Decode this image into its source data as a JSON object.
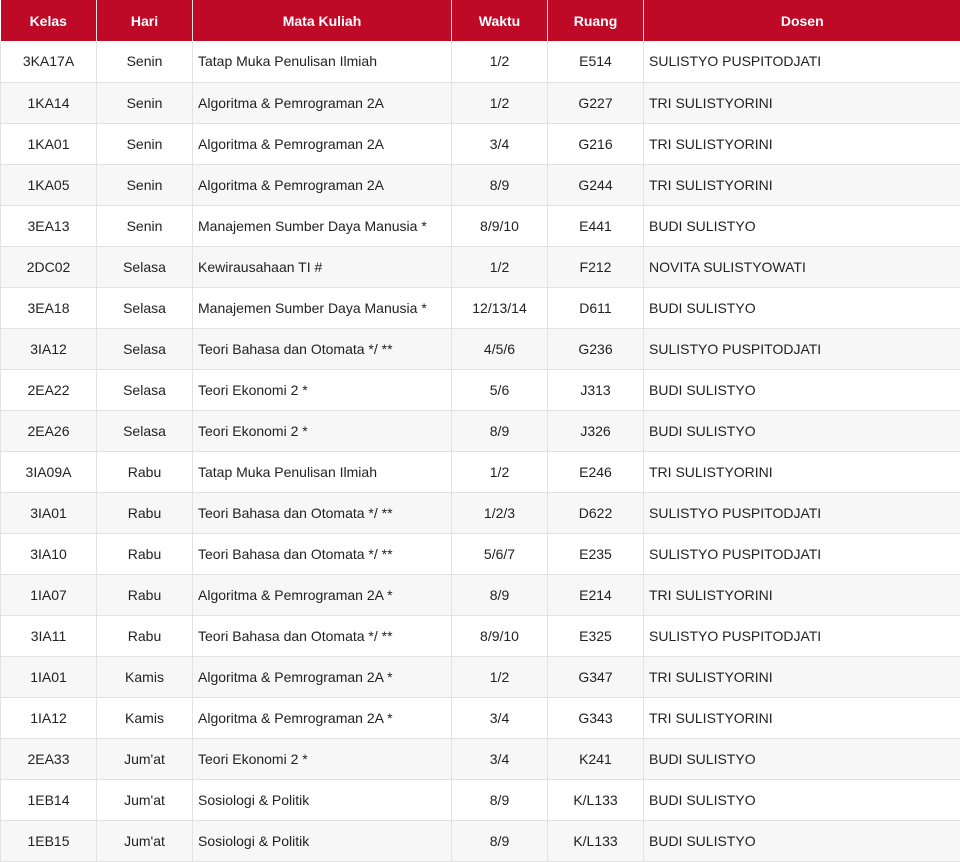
{
  "colors": {
    "header_bg": "#be0a27",
    "header_text": "#ffffff",
    "row_alt": "#f7f7f7",
    "border": "#e2e2e2"
  },
  "table": {
    "headers": {
      "kelas": "Kelas",
      "hari": "Hari",
      "mata_kuliah": "Mata Kuliah",
      "waktu": "Waktu",
      "ruang": "Ruang",
      "dosen": "Dosen"
    },
    "rows": [
      {
        "kelas": "3KA17A",
        "hari": "Senin",
        "mata_kuliah": "Tatap Muka Penulisan Ilmiah",
        "waktu": "1/2",
        "ruang": "E514",
        "dosen": "SULISTYO PUSPITODJATI"
      },
      {
        "kelas": "1KA14",
        "hari": "Senin",
        "mata_kuliah": "Algoritma & Pemrograman 2A",
        "waktu": "1/2",
        "ruang": "G227",
        "dosen": "TRI SULISTYORINI"
      },
      {
        "kelas": "1KA01",
        "hari": "Senin",
        "mata_kuliah": "Algoritma & Pemrograman 2A",
        "waktu": "3/4",
        "ruang": "G216",
        "dosen": "TRI SULISTYORINI"
      },
      {
        "kelas": "1KA05",
        "hari": "Senin",
        "mata_kuliah": "Algoritma & Pemrograman 2A",
        "waktu": "8/9",
        "ruang": "G244",
        "dosen": "TRI SULISTYORINI"
      },
      {
        "kelas": "3EA13",
        "hari": "Senin",
        "mata_kuliah": "Manajemen Sumber Daya Manusia *",
        "waktu": "8/9/10",
        "ruang": "E441",
        "dosen": "BUDI SULISTYO"
      },
      {
        "kelas": "2DC02",
        "hari": "Selasa",
        "mata_kuliah": "Kewirausahaan TI #",
        "waktu": "1/2",
        "ruang": "F212",
        "dosen": "NOVITA SULISTYOWATI"
      },
      {
        "kelas": "3EA18",
        "hari": "Selasa",
        "mata_kuliah": "Manajemen Sumber Daya Manusia *",
        "waktu": "12/13/14",
        "ruang": "D611",
        "dosen": "BUDI SULISTYO"
      },
      {
        "kelas": "3IA12",
        "hari": "Selasa",
        "mata_kuliah": "Teori Bahasa dan Otomata */ **",
        "waktu": "4/5/6",
        "ruang": "G236",
        "dosen": "SULISTYO PUSPITODJATI"
      },
      {
        "kelas": "2EA22",
        "hari": "Selasa",
        "mata_kuliah": "Teori Ekonomi 2 *",
        "waktu": "5/6",
        "ruang": "J313",
        "dosen": "BUDI SULISTYO"
      },
      {
        "kelas": "2EA26",
        "hari": "Selasa",
        "mata_kuliah": "Teori Ekonomi 2 *",
        "waktu": "8/9",
        "ruang": "J326",
        "dosen": "BUDI SULISTYO"
      },
      {
        "kelas": "3IA09A",
        "hari": "Rabu",
        "mata_kuliah": "Tatap Muka Penulisan Ilmiah",
        "waktu": "1/2",
        "ruang": "E246",
        "dosen": "TRI SULISTYORINI"
      },
      {
        "kelas": "3IA01",
        "hari": "Rabu",
        "mata_kuliah": "Teori Bahasa dan Otomata */ **",
        "waktu": "1/2/3",
        "ruang": "D622",
        "dosen": "SULISTYO PUSPITODJATI"
      },
      {
        "kelas": "3IA10",
        "hari": "Rabu",
        "mata_kuliah": "Teori Bahasa dan Otomata */ **",
        "waktu": "5/6/7",
        "ruang": "E235",
        "dosen": "SULISTYO PUSPITODJATI"
      },
      {
        "kelas": "1IA07",
        "hari": "Rabu",
        "mata_kuliah": "Algoritma & Pemrograman 2A *",
        "waktu": "8/9",
        "ruang": "E214",
        "dosen": "TRI SULISTYORINI"
      },
      {
        "kelas": "3IA11",
        "hari": "Rabu",
        "mata_kuliah": "Teori Bahasa dan Otomata */ **",
        "waktu": "8/9/10",
        "ruang": "E325",
        "dosen": "SULISTYO PUSPITODJATI"
      },
      {
        "kelas": "1IA01",
        "hari": "Kamis",
        "mata_kuliah": "Algoritma & Pemrograman 2A *",
        "waktu": "1/2",
        "ruang": "G347",
        "dosen": "TRI SULISTYORINI"
      },
      {
        "kelas": "1IA12",
        "hari": "Kamis",
        "mata_kuliah": "Algoritma & Pemrograman 2A *",
        "waktu": "3/4",
        "ruang": "G343",
        "dosen": "TRI SULISTYORINI"
      },
      {
        "kelas": "2EA33",
        "hari": "Jum'at",
        "mata_kuliah": "Teori Ekonomi 2 *",
        "waktu": "3/4",
        "ruang": "K241",
        "dosen": "BUDI SULISTYO"
      },
      {
        "kelas": "1EB14",
        "hari": "Jum'at",
        "mata_kuliah": "Sosiologi & Politik",
        "waktu": "8/9",
        "ruang": "K/L133",
        "dosen": "BUDI SULISTYO"
      },
      {
        "kelas": "1EB15",
        "hari": "Jum'at",
        "mata_kuliah": "Sosiologi & Politik",
        "waktu": "8/9",
        "ruang": "K/L133",
        "dosen": "BUDI SULISTYO"
      }
    ]
  }
}
